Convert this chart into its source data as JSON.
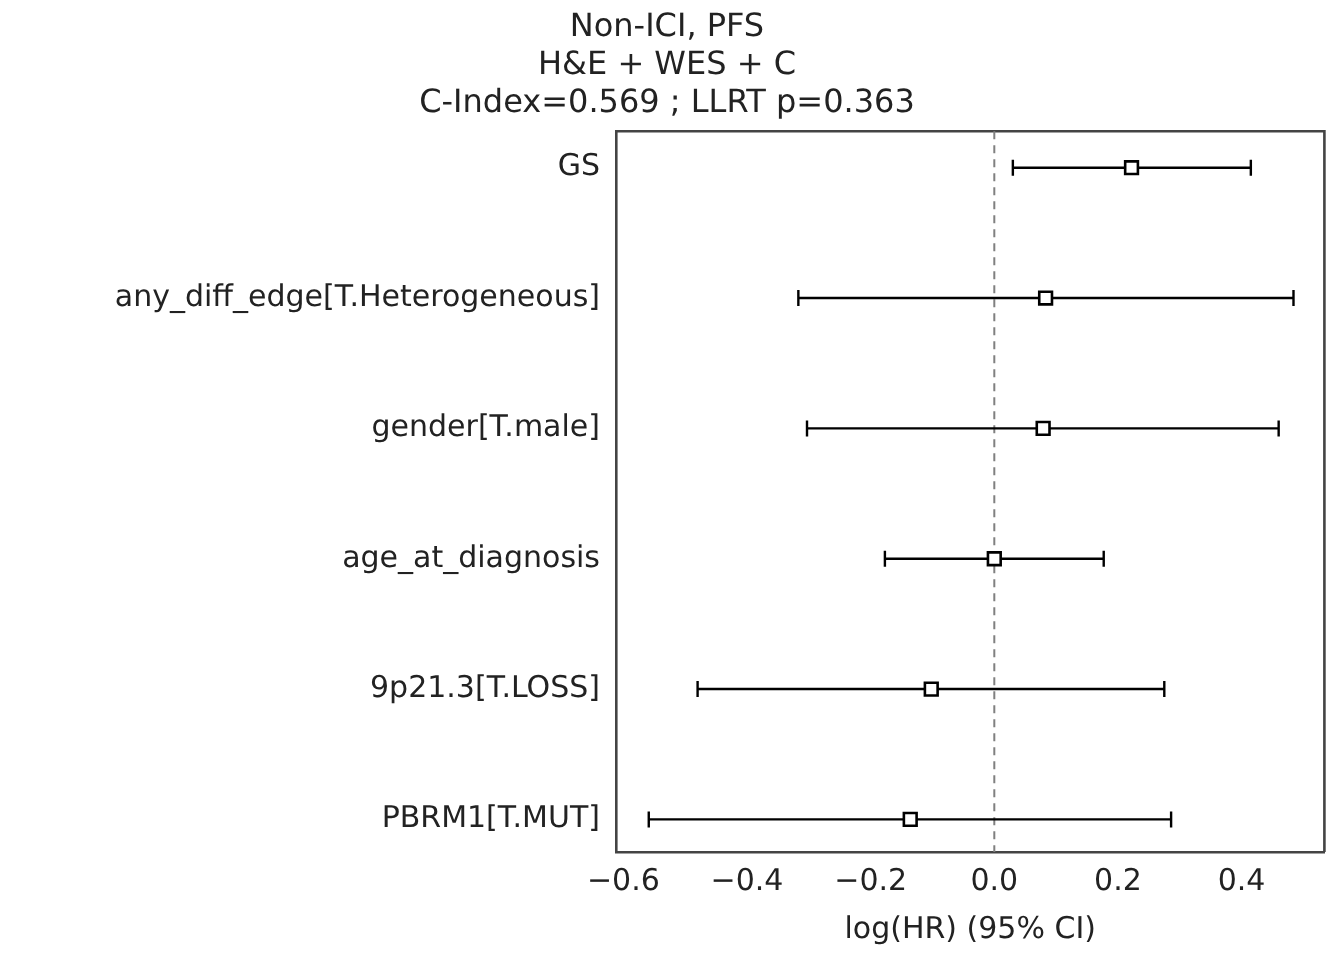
{
  "chart_data": {
    "type": "scatter",
    "orientation": "horizontal",
    "title": "Non-ICI, PFS\nH&E + WES + C\nC-Index=0.569 ; LLRT p=0.363",
    "xlabel": "log(HR) (95% CI)",
    "categories": [
      "GS",
      "any_diff_edge[T.Heterogeneous]",
      "gender[T.male]",
      "age_at_diagnosis",
      "9p21.3[T.LOSS]",
      "PBRM1[T.MUT]"
    ],
    "values": [
      0.222,
      0.083,
      0.079,
      0.0,
      -0.102,
      -0.136
    ],
    "errors": [
      [
        0.03,
        0.415
      ],
      [
        -0.317,
        0.484
      ],
      [
        -0.303,
        0.46
      ],
      [
        -0.177,
        0.177
      ],
      [
        -0.48,
        0.275
      ],
      [
        -0.559,
        0.286
      ]
    ],
    "color": "#000000",
    "marker": "square",
    "grid": false,
    "legend": false,
    "xlim": [
      -0.612,
      0.534
    ],
    "xticks": [
      {
        "value": -0.6,
        "label": "−0.6"
      },
      {
        "value": -0.4,
        "label": "−0.4"
      },
      {
        "value": -0.2,
        "label": "−0.2"
      },
      {
        "value": 0,
        "label": "0.0"
      },
      {
        "value": 0.2,
        "label": "0.2"
      },
      {
        "value": 0.4,
        "label": "0.4"
      }
    ],
    "ref_lines": [
      {
        "axis": "x",
        "value": 0,
        "color": "#808080",
        "line_style": "dashed"
      }
    ]
  }
}
